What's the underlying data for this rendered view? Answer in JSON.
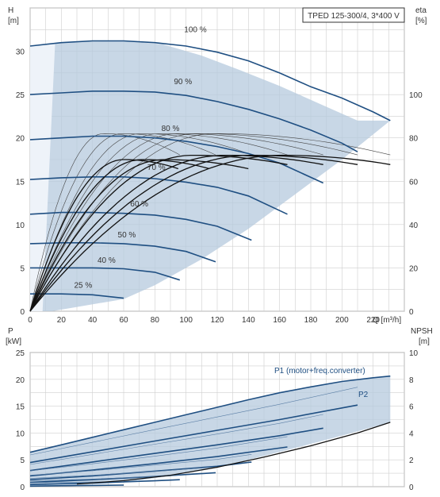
{
  "title": "TPED 125-300/4, 3*400 V",
  "colors": {
    "curve": "#1f4f82",
    "envelope": "#b5c9de",
    "envelope_light": "#dde8f3",
    "grid": "#cfcfcf",
    "text": "#333333",
    "eta": "#111111"
  },
  "chart_data": [
    {
      "type": "line",
      "title": "TPED 125-300/4, 3*400 V",
      "x_label": "Q [m³/h]",
      "y_label_left": [
        "H",
        "[m]"
      ],
      "y_label_right": [
        "eta",
        "[%]"
      ],
      "xlim": [
        0,
        240
      ],
      "ylim": [
        0,
        35
      ],
      "x_ticks": [
        0,
        20,
        40,
        60,
        80,
        100,
        120,
        140,
        160,
        180,
        200,
        220
      ],
      "y_ticks": [
        0,
        5,
        10,
        15,
        20,
        25,
        30
      ],
      "y2lim": [
        0,
        140
      ],
      "y2_ticks": [
        0,
        20,
        40,
        60,
        80,
        100
      ],
      "grid": true,
      "operating_envelope": [
        [
          0,
          0
        ],
        [
          0,
          30.6
        ],
        [
          14.6,
          30.9
        ],
        [
          24.6,
          31.1
        ],
        [
          60.0,
          31.2
        ],
        [
          85.0,
          30.8
        ],
        [
          110.0,
          29.5
        ],
        [
          135.0,
          27.8
        ],
        [
          160.0,
          26.0
        ],
        [
          185.0,
          24.0
        ],
        [
          210.0,
          22.0
        ],
        [
          231.0,
          22.0
        ],
        [
          200.0,
          17.5
        ],
        [
          170.0,
          13.5
        ],
        [
          140.0,
          9.5
        ],
        [
          110.0,
          6.0
        ],
        [
          80.0,
          3.0
        ],
        [
          60.0,
          1.4
        ],
        [
          14.0,
          0.0
        ],
        [
          0,
          0
        ]
      ],
      "head_curves": [
        {
          "name": "100 %",
          "q": [
            0,
            20,
            40,
            60,
            80,
            100,
            120,
            140,
            160,
            180,
            200,
            220,
            231
          ],
          "h": [
            30.6,
            31.0,
            31.2,
            31.2,
            31.0,
            30.6,
            29.9,
            28.9,
            27.5,
            25.9,
            24.6,
            23.0,
            22.0
          ]
        },
        {
          "name": "90 %",
          "q": [
            0,
            20,
            40,
            60,
            80,
            100,
            120,
            140,
            160,
            180,
            200,
            210
          ],
          "h": [
            25.0,
            25.2,
            25.4,
            25.4,
            25.3,
            24.9,
            24.2,
            23.3,
            22.2,
            20.9,
            19.4,
            18.4
          ]
        },
        {
          "name": "80 %",
          "q": [
            0,
            20,
            40,
            60,
            80,
            100,
            120,
            140,
            160,
            188
          ],
          "h": [
            19.8,
            20.0,
            20.2,
            20.2,
            20.0,
            19.6,
            19.0,
            18.2,
            17.1,
            14.8
          ]
        },
        {
          "name": "70 %",
          "q": [
            0,
            20,
            40,
            60,
            80,
            100,
            120,
            140,
            165
          ],
          "h": [
            15.2,
            15.4,
            15.5,
            15.5,
            15.3,
            14.9,
            14.3,
            13.3,
            11.2
          ]
        },
        {
          "name": "60 %",
          "q": [
            0,
            20,
            40,
            60,
            80,
            100,
            120,
            142
          ],
          "h": [
            11.2,
            11.4,
            11.4,
            11.3,
            11.1,
            10.6,
            9.8,
            8.2
          ]
        },
        {
          "name": "50 %",
          "q": [
            0,
            20,
            40,
            60,
            80,
            100,
            119
          ],
          "h": [
            7.8,
            7.9,
            7.9,
            7.8,
            7.5,
            6.9,
            5.7
          ]
        },
        {
          "name": "40 %",
          "q": [
            0,
            20,
            40,
            60,
            80,
            96
          ],
          "h": [
            5.0,
            5.0,
            5.0,
            4.9,
            4.5,
            3.6
          ]
        },
        {
          "name": "25 %",
          "q": [
            0,
            20,
            40,
            60
          ],
          "h": [
            2.0,
            2.0,
            1.9,
            1.5
          ]
        }
      ],
      "curve_labels": [
        {
          "text": "100 %",
          "q": 106,
          "h": 32.2
        },
        {
          "text": "90 %",
          "q": 98,
          "h": 26.2
        },
        {
          "text": "80 %",
          "q": 90,
          "h": 20.8
        },
        {
          "text": "70 %",
          "q": 81,
          "h": 16.3
        },
        {
          "text": "60 %",
          "q": 70,
          "h": 12.1
        },
        {
          "text": "50 %",
          "q": 62,
          "h": 8.5
        },
        {
          "text": "40 %",
          "q": 49,
          "h": 5.6
        },
        {
          "text": "25 %",
          "q": 34,
          "h": 2.7
        }
      ],
      "efficiency_peaks": [
        {
          "qpk": 47,
          "eta": 82,
          "q_end": 96
        },
        {
          "qpk": 59,
          "eta": 82,
          "q_end": 119
        },
        {
          "qpk": 71,
          "eta": 82,
          "q_end": 142
        },
        {
          "qpk": 83,
          "eta": 82,
          "q_end": 165
        },
        {
          "qpk": 95,
          "eta": 82,
          "q_end": 188
        },
        {
          "qpk": 107,
          "eta": 82,
          "q_end": 210
        },
        {
          "qpk": 119,
          "eta": 82,
          "q_end": 231
        }
      ],
      "efficiency_thick": [
        {
          "qpk": 60,
          "eta": 70,
          "q_end": 95
        },
        {
          "qpk": 72,
          "eta": 70,
          "q_end": 115
        },
        {
          "qpk": 86,
          "eta": 70,
          "q_end": 140
        },
        {
          "qpk": 104,
          "eta": 72,
          "q_end": 165
        },
        {
          "qpk": 125,
          "eta": 72,
          "q_end": 188
        },
        {
          "qpk": 142,
          "eta": 72,
          "q_end": 210
        },
        {
          "qpk": 162,
          "eta": 72,
          "q_end": 231
        }
      ]
    },
    {
      "type": "line",
      "x_label": "",
      "y_label_left": [
        "P",
        "[kW]"
      ],
      "y_label_right": [
        "NPSH",
        "[m]"
      ],
      "xlim": [
        0,
        240
      ],
      "ylim": [
        0,
        25
      ],
      "y_ticks": [
        0,
        5,
        10,
        15,
        20,
        25
      ],
      "y2lim": [
        0,
        10
      ],
      "y2_ticks": [
        0,
        2,
        4,
        6,
        8,
        10
      ],
      "grid": true,
      "p1_label": "P1 (motor+freq.converter)",
      "p2_label": "P2",
      "power_envelope_top": [
        [
          0,
          6.4
        ],
        [
          20,
          7.8
        ],
        [
          40,
          9.2
        ],
        [
          60,
          10.6
        ],
        [
          80,
          12.0
        ],
        [
          100,
          13.4
        ],
        [
          120,
          14.8
        ],
        [
          140,
          16.2
        ],
        [
          160,
          17.5
        ],
        [
          180,
          18.6
        ],
        [
          200,
          19.6
        ],
        [
          220,
          20.3
        ],
        [
          231,
          20.6
        ]
      ],
      "power_envelope_bottom": [
        [
          231,
          12.0
        ],
        [
          200,
          9.5
        ],
        [
          170,
          7.2
        ],
        [
          140,
          5.0
        ],
        [
          110,
          3.0
        ],
        [
          80,
          1.6
        ],
        [
          60,
          0.8
        ],
        [
          20,
          0.1
        ],
        [
          0,
          0.0
        ]
      ],
      "power_curves": [
        {
          "name": "90 %",
          "q": [
            0,
            40,
            80,
            120,
            160,
            210
          ],
          "p": [
            4.5,
            6.5,
            8.5,
            10.5,
            12.5,
            15.2
          ]
        },
        {
          "name": "80 %",
          "q": [
            0,
            40,
            80,
            120,
            160,
            188
          ],
          "p": [
            3.0,
            4.6,
            6.2,
            7.8,
            9.5,
            10.9
          ]
        },
        {
          "name": "70 %",
          "q": [
            0,
            40,
            80,
            120,
            165
          ],
          "p": [
            2.0,
            3.1,
            4.3,
            5.6,
            7.4
          ]
        },
        {
          "name": "60 %",
          "q": [
            0,
            40,
            80,
            120,
            142
          ],
          "p": [
            1.3,
            2.0,
            2.9,
            3.8,
            4.6
          ]
        },
        {
          "name": "50 %",
          "q": [
            0,
            40,
            80,
            119
          ],
          "p": [
            0.8,
            1.3,
            1.9,
            2.6
          ]
        },
        {
          "name": "40 %",
          "q": [
            0,
            40,
            80,
            96
          ],
          "p": [
            0.4,
            0.7,
            1.1,
            1.3
          ]
        },
        {
          "name": "25 %",
          "q": [
            0,
            30,
            60
          ],
          "p": [
            0.1,
            0.2,
            0.3
          ]
        }
      ],
      "npsh_curve": {
        "q": [
          30,
          60,
          90,
          120,
          150,
          180,
          210,
          231
        ],
        "npsh": [
          0.2,
          0.45,
          0.85,
          1.45,
          2.2,
          3.05,
          4.0,
          4.8
        ]
      }
    }
  ]
}
